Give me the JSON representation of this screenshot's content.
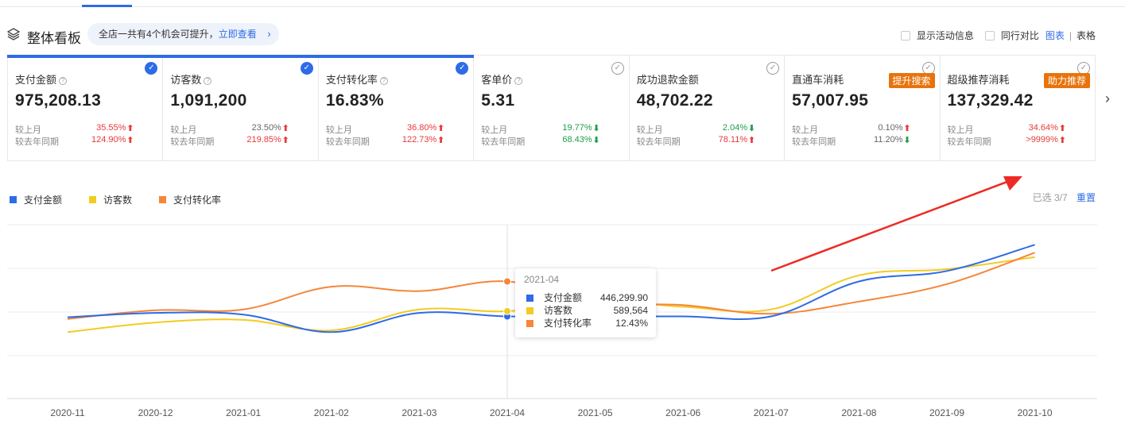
{
  "header": {
    "title": "整体看板",
    "tip_text": "全店一共有4个机会可提升，",
    "tip_link": "立即查看",
    "show_activity_label": "显示活动信息",
    "peer_compare_label": "同行对比",
    "view_chart": "图表",
    "view_table": "表格"
  },
  "cards": [
    {
      "label": "支付金额",
      "value": "975,208.13",
      "selected": true,
      "has_help": true,
      "mom_label": "较上月",
      "mom": "35.55%",
      "mom_dir": "up",
      "yoy_label": "较去年同期",
      "yoy": "124.90%",
      "yoy_dir": "up"
    },
    {
      "label": "访客数",
      "value": "1,091,200",
      "selected": true,
      "has_help": true,
      "mom_label": "较上月",
      "mom": "23.50%",
      "mom_dir": "up",
      "yoy_label": "较去年同期",
      "yoy": "219.85%",
      "yoy_dir": "up"
    },
    {
      "label": "支付转化率",
      "value": "16.83%",
      "selected": true,
      "has_help": true,
      "mom_label": "较上月",
      "mom": "36.80%",
      "mom_dir": "up",
      "yoy_label": "较去年同期",
      "yoy": "122.73%",
      "yoy_dir": "up"
    },
    {
      "label": "客单价",
      "value": "5.31",
      "selected": false,
      "has_help": true,
      "mom_label": "较上月",
      "mom": "19.77%",
      "mom_dir": "down",
      "yoy_label": "较去年同期",
      "yoy": "68.43%",
      "yoy_dir": "down"
    },
    {
      "label": "成功退款金额",
      "value": "48,702.22",
      "selected": false,
      "has_help": false,
      "mom_label": "较上月",
      "mom": "2.04%",
      "mom_dir": "down",
      "yoy_label": "较去年同期",
      "yoy": "78.11%",
      "yoy_dir": "up"
    },
    {
      "label": "直通车消耗",
      "value": "57,007.95",
      "selected": false,
      "has_help": false,
      "tag": "提升搜索",
      "mom_label": "较上月",
      "mom": "0.10%",
      "mom_dir": "up",
      "yoy_label": "较去年同期",
      "yoy": "11.20%",
      "yoy_dir": "down"
    },
    {
      "label": "超级推荐消耗",
      "value": "137,329.42",
      "selected": false,
      "has_help": false,
      "tag": "助力推荐",
      "mom_label": "较上月",
      "mom": "34.64%",
      "mom_dir": "up",
      "yoy_label": "较去年同期",
      "yoy": ">9999%",
      "yoy_dir": "up"
    }
  ],
  "legend_selected": "已选 3/7",
  "reset_label": "重置",
  "colors": {
    "blue": "#2e6be6",
    "yellow": "#f2cc22",
    "orange": "#f5863a",
    "red": "#e63b3b",
    "green": "#1e9e4a",
    "tag": "#e8730c"
  },
  "tooltip": {
    "title": "2021-04",
    "rows": [
      {
        "name": "支付金额",
        "value": "446,299.90"
      },
      {
        "name": "访客数",
        "value": "589,564"
      },
      {
        "name": "支付转化率",
        "value": "12.43%"
      }
    ]
  },
  "chart_data": {
    "type": "line",
    "categories": [
      "2020-11",
      "2020-12",
      "2021-01",
      "2021-02",
      "2021-03",
      "2021-04",
      "2021-05",
      "2021-06",
      "2021-07",
      "2021-08",
      "2021-09",
      "2021-10"
    ],
    "series": [
      {
        "name": "支付金额",
        "color": "#2e6be6",
        "values": [
          0.44,
          0.49,
          0.47,
          0.27,
          0.49,
          0.45,
          0.45,
          0.45,
          0.45,
          0.85,
          0.97,
          1.27
        ]
      },
      {
        "name": "访客数",
        "color": "#f2cc22",
        "values": [
          0.27,
          0.38,
          0.41,
          0.29,
          0.53,
          0.51,
          0.63,
          0.56,
          0.53,
          0.92,
          0.99,
          1.13
        ]
      },
      {
        "name": "支付转化率",
        "color": "#f5863a",
        "values": [
          0.42,
          0.52,
          0.53,
          0.79,
          0.74,
          0.85,
          0.61,
          0.58,
          0.48,
          0.62,
          0.82,
          1.18
        ]
      }
    ],
    "hover_category": "2021-04",
    "grid": true
  }
}
